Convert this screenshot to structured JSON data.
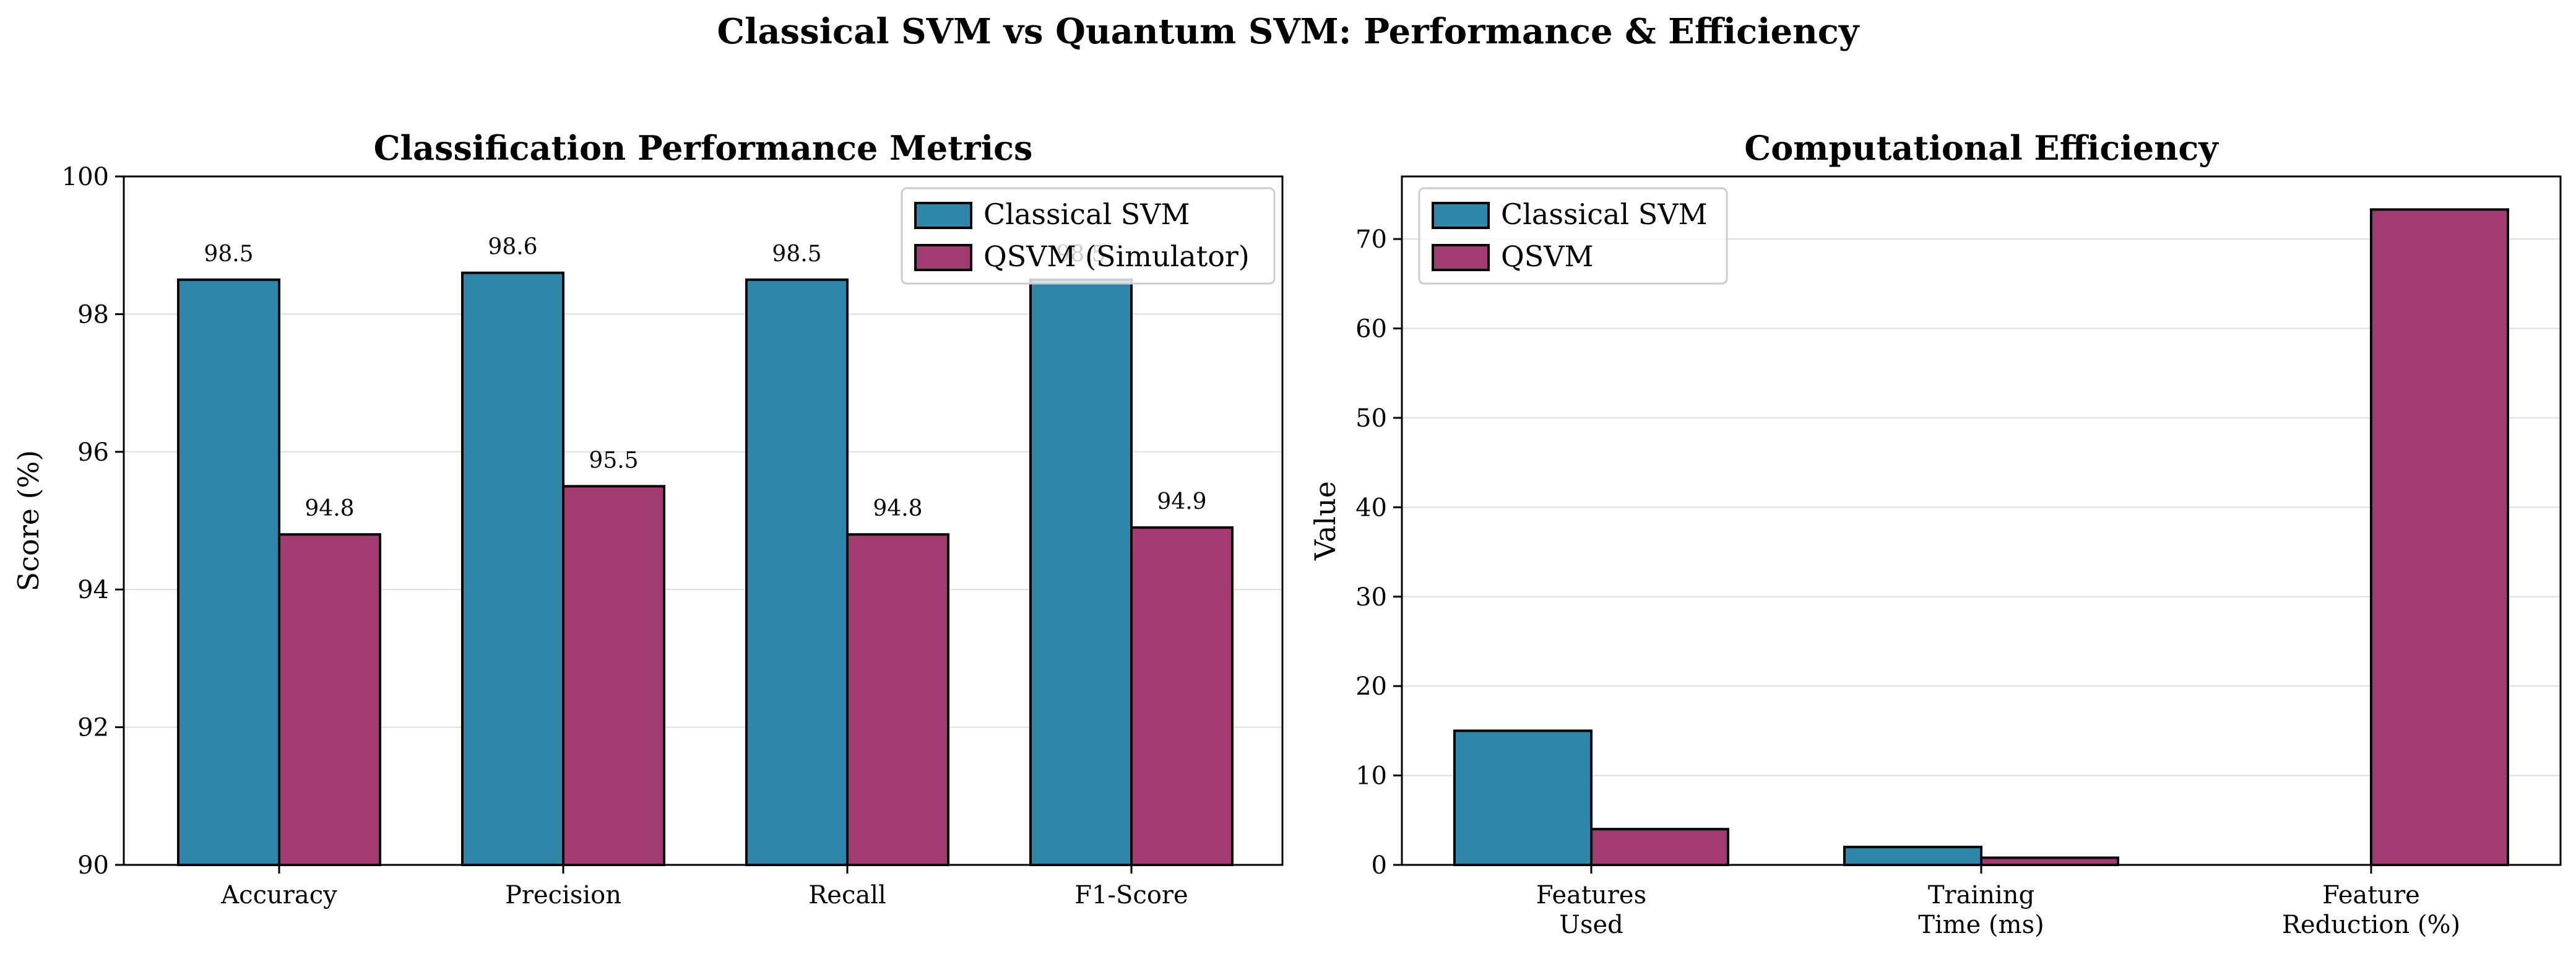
{
  "figure": {
    "title": "Classical SVM vs Quantum SVM: Performance & Efficiency"
  },
  "colors": {
    "classical": "#2e86ab",
    "quantum": "#a23b72"
  },
  "chart_data": [
    {
      "type": "bar",
      "title": "Classification Performance Metrics",
      "xlabel": "",
      "ylabel": "Score (%)",
      "ylim": [
        90,
        100
      ],
      "yticks": [
        90,
        92,
        94,
        96,
        98,
        100
      ],
      "categories": [
        "Accuracy",
        "Precision",
        "Recall",
        "F1-Score"
      ],
      "series": [
        {
          "name": "Classical SVM",
          "values": [
            98.5,
            98.6,
            98.5,
            98.5
          ],
          "labels": [
            "98.5",
            "98.6",
            "98.5",
            "98.5"
          ]
        },
        {
          "name": "QSVM (Simulator)",
          "values": [
            94.8,
            95.5,
            94.8,
            94.9
          ],
          "labels": [
            "94.8",
            "95.5",
            "94.8",
            "94.9"
          ]
        }
      ],
      "legend": "upper-right",
      "grid": true
    },
    {
      "type": "bar",
      "title": "Computational Efficiency",
      "xlabel": "",
      "ylabel": "Value",
      "ylim": [
        0,
        77
      ],
      "yticks": [
        0,
        10,
        20,
        30,
        40,
        50,
        60,
        70
      ],
      "categories": [
        [
          "Features",
          "Used"
        ],
        [
          "Training",
          "Time (ms)"
        ],
        [
          "Feature",
          "Reduction (%)"
        ]
      ],
      "series": [
        {
          "name": "Classical SVM",
          "values": [
            15,
            2,
            0
          ]
        },
        {
          "name": "QSVM",
          "values": [
            4,
            0.8,
            73.3
          ]
        }
      ],
      "legend": "upper-left",
      "grid": true
    }
  ]
}
